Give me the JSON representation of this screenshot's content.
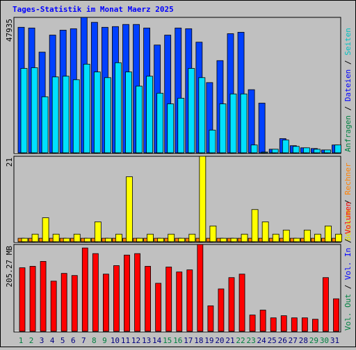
{
  "chart_data": [
    {
      "type": "bar",
      "title": "Tages-Statistik im Monat Maerz 2025",
      "categories": [
        "1",
        "2",
        "3",
        "4",
        "5",
        "6",
        "7",
        "8",
        "9",
        "10",
        "11",
        "12",
        "13",
        "14",
        "15",
        "16",
        "17",
        "18",
        "19",
        "20",
        "21",
        "22",
        "23",
        "24",
        "25",
        "26",
        "27",
        "28",
        "29",
        "30",
        "31"
      ],
      "category_colors": [
        "#008040",
        "#008040",
        "#000080",
        "#000080",
        "#000080",
        "#000080",
        "#000080",
        "#008040",
        "#008040",
        "#000080",
        "#000080",
        "#000080",
        "#000080",
        "#000080",
        "#008040",
        "#008040",
        "#000080",
        "#000080",
        "#000080",
        "#000080",
        "#000080",
        "#008040",
        "#008040",
        "#000080",
        "#000080",
        "#000080",
        "#000080",
        "#000080",
        "#008040",
        "#008040",
        "#000080"
      ],
      "side_labels": [
        {
          "text": "Anfragen",
          "color": "#008040"
        },
        {
          "text": "Dateien",
          "color": "#0000ff"
        },
        {
          "text": "Seiten",
          "color": "#00c0c0"
        }
      ],
      "separator": " / ",
      "ylim": [
        0,
        47935
      ],
      "yticks": [
        47935
      ],
      "series": [
        {
          "color": "#0040ff",
          "values": [
            44440,
            44190,
            35700,
            41690,
            43440,
            43940,
            47935,
            46190,
            44440,
            44690,
            45440,
            45440,
            44190,
            38200,
            41690,
            44190,
            43940,
            39200,
            24970,
            32710,
            42190,
            42690,
            22470,
            17730,
            1500,
            5240,
            2750,
            2000,
            1750,
            1250,
            3000
          ]
        },
        {
          "color": "#00e0ff",
          "values": [
            29960,
            30210,
            19970,
            26960,
            27210,
            25970,
            31460,
            28710,
            26710,
            31960,
            28710,
            23720,
            27210,
            21220,
            17480,
            19470,
            29960,
            26710,
            8240,
            17480,
            20970,
            20970,
            3000,
            500,
            1500,
            4740,
            2500,
            2000,
            1500,
            1250,
            3000
          ]
        }
      ]
    },
    {
      "type": "bar",
      "side_labels": [
        {
          "text": "Besuche",
          "color": "#e0e000"
        },
        {
          "text": "Rechner",
          "color": "#ff8000"
        }
      ],
      "separator": " / ",
      "ylim": [
        0,
        21
      ],
      "yticks": [
        21
      ],
      "series": [
        {
          "color": "#ff8000",
          "values": [
            1,
            1,
            1,
            1,
            1,
            1,
            1,
            1,
            1,
            1,
            1,
            1,
            1,
            1,
            1,
            1,
            1,
            1,
            1,
            1,
            1,
            1,
            1,
            1,
            1,
            1,
            1,
            1,
            1,
            1,
            1
          ]
        },
        {
          "color": "#ffff00",
          "values": [
            1,
            2,
            6,
            2,
            1,
            2,
            1,
            5,
            1,
            2,
            16,
            1,
            2,
            1,
            2,
            1,
            2,
            21,
            4,
            1,
            1,
            2,
            8,
            5,
            2,
            3,
            1,
            3,
            2,
            4,
            2
          ]
        }
      ]
    },
    {
      "type": "bar",
      "side_labels": [
        {
          "text": "Vol. Out",
          "color": "#008040"
        },
        {
          "text": "Vol. In",
          "color": "#0000ff"
        },
        {
          "text": "Volumen",
          "color": "#ff0000"
        }
      ],
      "separator": " / ",
      "ylim": [
        0,
        205.27
      ],
      "yticks": [
        {
          "value": 205.27,
          "label": "205.27 MB"
        }
      ],
      "series": [
        {
          "color": "#ff0000",
          "values": [
            150.6,
            154.0,
            165.5,
            119.2,
            137.4,
            132.4,
            197.0,
            183.8,
            135.7,
            155.6,
            180.4,
            183.8,
            154.0,
            114.2,
            152.3,
            140.7,
            145.7,
            205.27,
            61.3,
            101.0,
            127.5,
            135.7,
            39.7,
            51.3,
            33.1,
            38.1,
            33.1,
            33.1,
            29.8,
            127.5,
            77.8
          ]
        }
      ]
    }
  ]
}
